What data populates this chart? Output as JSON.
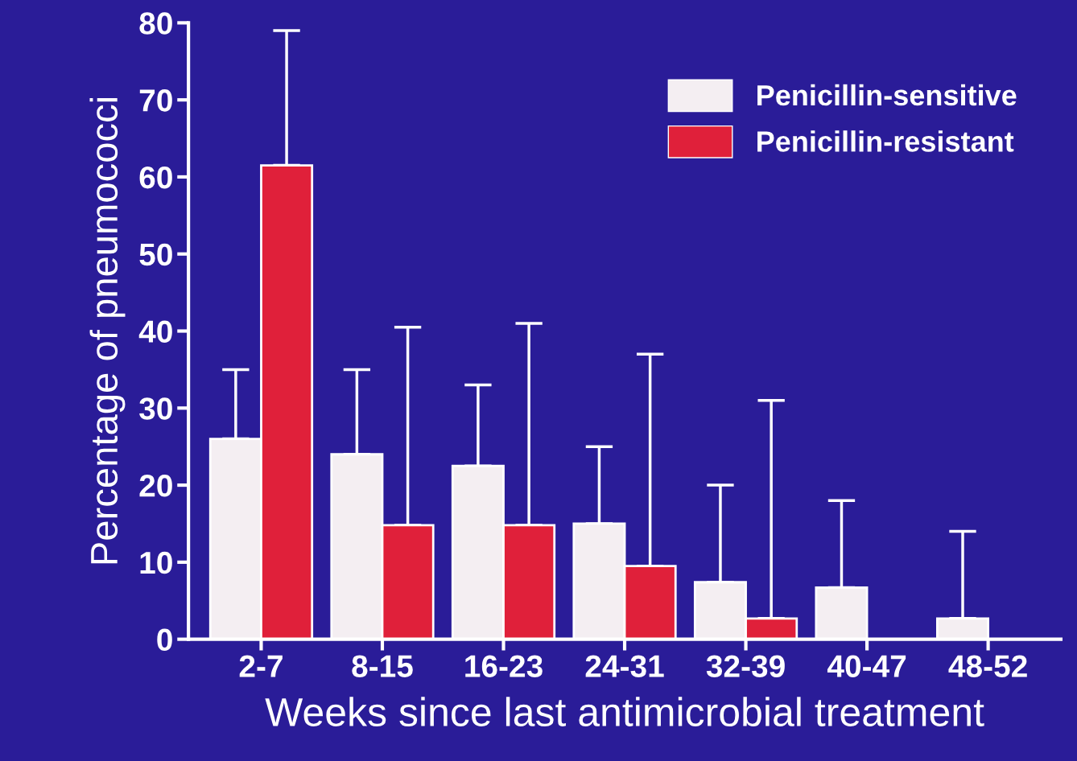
{
  "chart_data": {
    "type": "bar",
    "xlabel": "Weeks since last antimicrobial treatment",
    "ylabel": "Percentage of pneumococci",
    "categories": [
      "2-7",
      "8-15",
      "16-23",
      "24-31",
      "32-39",
      "40-47",
      "48-52"
    ],
    "series": [
      {
        "name": "Penicillin-sensitive",
        "color": "#f4eef2",
        "values": [
          26,
          24,
          22.5,
          15,
          7.4,
          6.7,
          2.7
        ],
        "errors": [
          [
            26,
            35
          ],
          [
            24,
            35
          ],
          [
            22.5,
            33
          ],
          [
            15,
            25
          ],
          [
            7.4,
            20
          ],
          [
            6.7,
            18
          ],
          [
            2.7,
            14
          ]
        ]
      },
      {
        "name": "Penicillin-resistant",
        "color": "#e0203a",
        "values": [
          61.5,
          14.8,
          14.8,
          9.5,
          2.7,
          null,
          null
        ],
        "errors": [
          [
            61.5,
            79
          ],
          [
            14.8,
            40.5
          ],
          [
            14.8,
            41
          ],
          [
            9.5,
            37
          ],
          [
            2.7,
            31
          ],
          null,
          null
        ]
      }
    ],
    "ylim": [
      0,
      80
    ],
    "yticks": [
      0,
      10,
      20,
      30,
      40,
      50,
      60,
      70,
      80
    ],
    "grid": false,
    "legend": "top right"
  }
}
